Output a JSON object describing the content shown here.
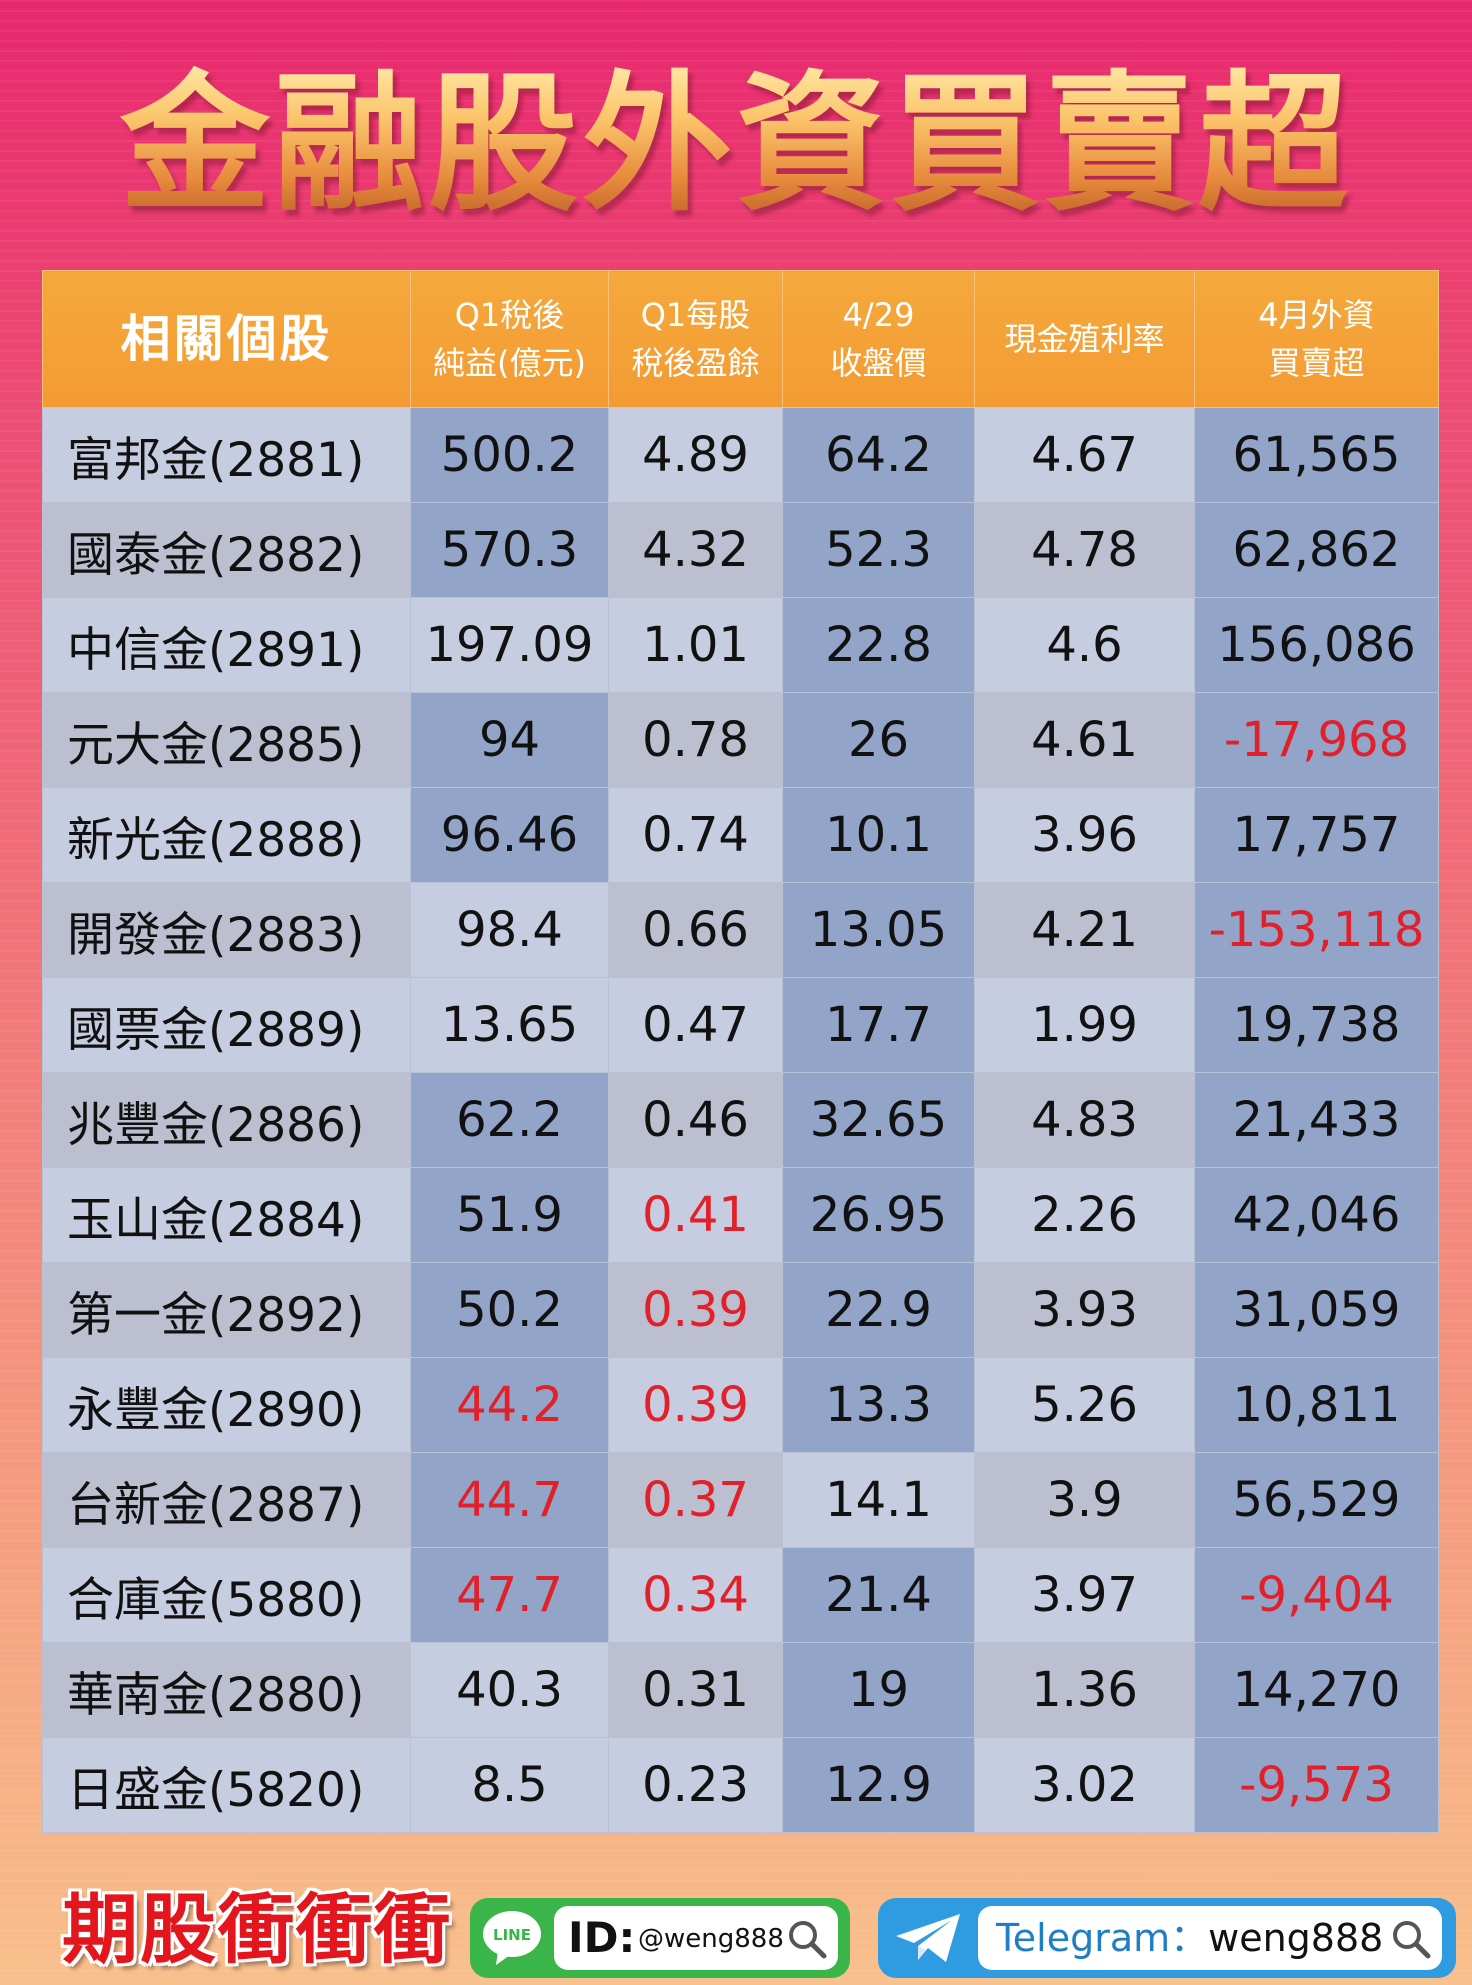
{
  "title": "金融股外資買賣超",
  "table": {
    "headers": [
      {
        "line1": "相關個股",
        "line2": ""
      },
      {
        "line1": "Q1稅後",
        "line2": "純益(億元)"
      },
      {
        "line1": "Q1每股",
        "line2": "稅後盈餘"
      },
      {
        "line1": "4/29",
        "line2": "收盤價"
      },
      {
        "line1": "現金殖利率",
        "line2": ""
      },
      {
        "line1": "4月外資",
        "line2": "買賣超"
      }
    ],
    "rows": [
      {
        "name": "富邦金(2881)",
        "net_income": "500.2",
        "eps": "4.89",
        "close": "64.2",
        "yield": "4.67",
        "foreign": "61,565"
      },
      {
        "name": "國泰金(2882)",
        "net_income": "570.3",
        "eps": "4.32",
        "close": "52.3",
        "yield": "4.78",
        "foreign": "62,862"
      },
      {
        "name": "中信金(2891)",
        "net_income": "197.09",
        "eps": "1.01",
        "close": "22.8",
        "yield": "4.6",
        "foreign": "156,086"
      },
      {
        "name": "元大金(2885)",
        "net_income": "94",
        "eps": "0.78",
        "close": "26",
        "yield": "4.61",
        "foreign": "-17,968"
      },
      {
        "name": "新光金(2888)",
        "net_income": "96.46",
        "eps": "0.74",
        "close": "10.1",
        "yield": "3.96",
        "foreign": "17,757"
      },
      {
        "name": "開發金(2883)",
        "net_income": "98.4",
        "eps": "0.66",
        "close": "13.05",
        "yield": "4.21",
        "foreign": "-153,118"
      },
      {
        "name": "國票金(2889)",
        "net_income": "13.65",
        "eps": "0.47",
        "close": "17.7",
        "yield": "1.99",
        "foreign": "19,738"
      },
      {
        "name": "兆豐金(2886)",
        "net_income": "62.2",
        "eps": "0.46",
        "close": "32.65",
        "yield": "4.83",
        "foreign": "21,433"
      },
      {
        "name": "玉山金(2884)",
        "net_income": "51.9",
        "eps": "0.41",
        "close": "26.95",
        "yield": "2.26",
        "foreign": "42,046"
      },
      {
        "name": "第一金(2892)",
        "net_income": "50.2",
        "eps": "0.39",
        "close": "22.9",
        "yield": "3.93",
        "foreign": "31,059"
      },
      {
        "name": "永豐金(2890)",
        "net_income": "44.2",
        "eps": "0.39",
        "close": "13.3",
        "yield": "5.26",
        "foreign": "10,811"
      },
      {
        "name": "台新金(2887)",
        "net_income": "44.7",
        "eps": "0.37",
        "close": "14.1",
        "yield": "3.9",
        "foreign": "56,529"
      },
      {
        "name": "合庫金(5880)",
        "net_income": "47.7",
        "eps": "0.34",
        "close": "21.4",
        "yield": "3.97",
        "foreign": "-9,404"
      },
      {
        "name": "華南金(2880)",
        "net_income": "40.3",
        "eps": "0.31",
        "close": "19",
        "yield": "1.36",
        "foreign": "14,270"
      },
      {
        "name": "日盛金(5820)",
        "net_income": "8.5",
        "eps": "0.23",
        "close": "12.9",
        "yield": "3.02",
        "foreign": "-9,573"
      }
    ],
    "highlight_color": "#e0202a"
  },
  "footer": {
    "brand": "期股衝衝衝",
    "line_logo_text": "LINE",
    "line_id_label": "ID:",
    "line_id_value": "@weng888",
    "telegram_label": "Telegram：",
    "telegram_value": "weng888"
  },
  "colors": {
    "header_orange": "#f39b33",
    "row_light": "#c7cde0",
    "row_mid": "#bcbfcf",
    "col_blue": "#93a4c9",
    "negative_red": "#e0202a",
    "line_green": "#39b54a",
    "telegram_blue": "#2f9ce1"
  }
}
